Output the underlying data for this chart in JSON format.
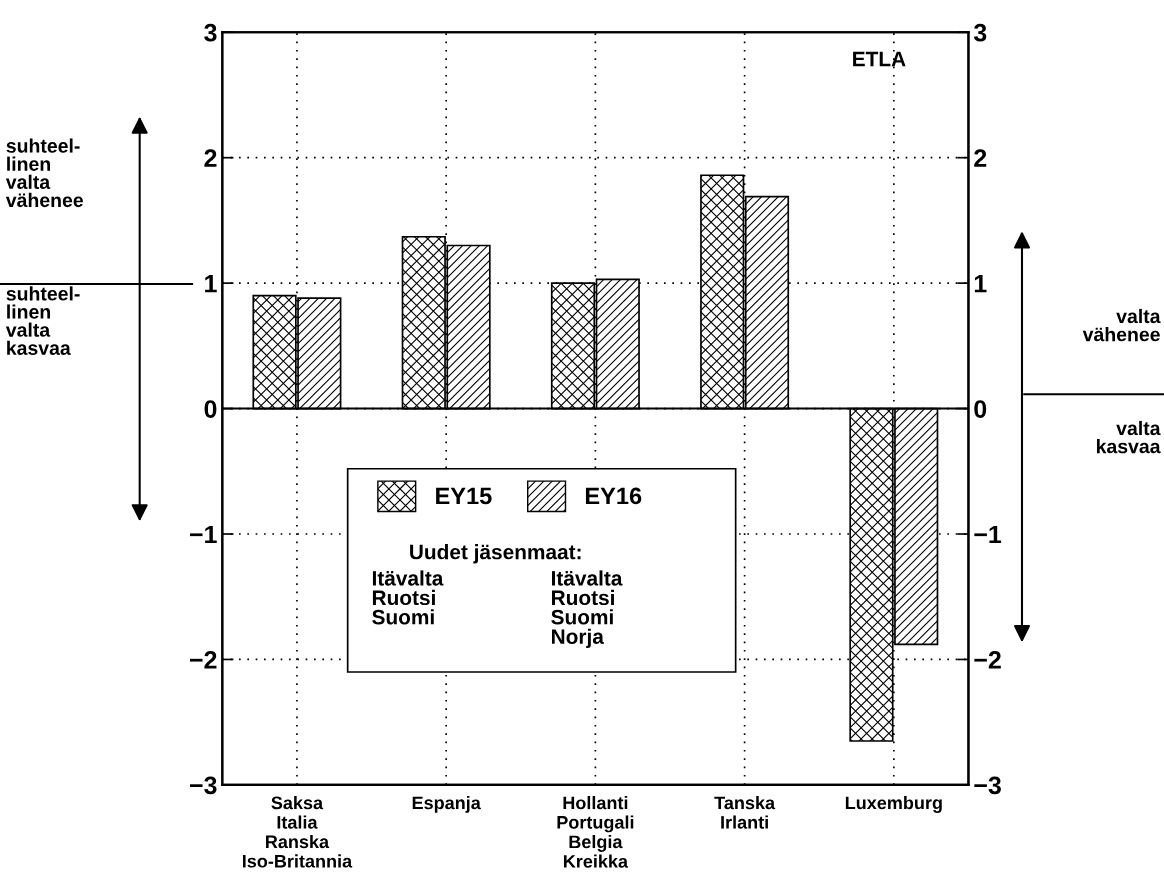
{
  "chart_data": {
    "type": "bar",
    "categories": [
      "Saksa\nItalia\nRanska\nIso-Britannia",
      "Espanja",
      "Hollanti\nPortugali\nBelgia\nKreikka",
      "Tanska\nIrlanti",
      "Luxemburg"
    ],
    "series": [
      {
        "name": "EY15",
        "color": "#000000",
        "values": [
          0.9,
          1.37,
          1.0,
          1.86,
          -2.65
        ]
      },
      {
        "name": "EY16",
        "color": "#000000",
        "values": [
          0.88,
          1.3,
          1.03,
          1.69,
          -1.88
        ]
      }
    ],
    "ylim": [
      -3,
      3
    ],
    "yticks": [
      -3,
      -2,
      -1,
      0,
      1,
      2,
      3
    ],
    "y2lim": [
      -3,
      3
    ],
    "y2ticks": [
      -3,
      -2,
      -1,
      0,
      1,
      2,
      3
    ],
    "ref_lines": [
      {
        "axis": "y",
        "value": 0,
        "color": "#000000",
        "line_style": "solid"
      }
    ],
    "grid": true,
    "legend": "bottom",
    "annotations": [
      "ETLA",
      "Uudet jäsenmaat:",
      "Itävalta\nRuotsi\nSuomi",
      "Itävalta\nRuotsi\nSuomi\nNorja",
      "suhteel-\nlinen\nvalta\nvähenee",
      "suhteel-\nlinen\nvalta\nkasvaa",
      "valta\nvähenee",
      "valta\nkasvaa"
    ]
  }
}
